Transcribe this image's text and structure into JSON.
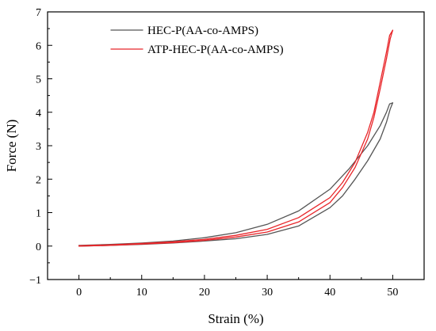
{
  "chart_data": {
    "type": "line",
    "title": "",
    "xlabel": "Strain (%)",
    "ylabel": "Force (N)",
    "xlim": [
      -5,
      55
    ],
    "ylim": [
      -1,
      7
    ],
    "xticks": [
      0,
      10,
      20,
      30,
      40,
      50
    ],
    "yticks": [
      -1,
      0,
      1,
      2,
      3,
      4,
      5,
      6,
      7
    ],
    "grid": false,
    "legend_position": "top-center",
    "series": [
      {
        "name": "HEC-P(AA-co-AMPS)",
        "color": "#555555",
        "loading": [
          [
            0,
            0.02
          ],
          [
            5,
            0.05
          ],
          [
            10,
            0.09
          ],
          [
            15,
            0.15
          ],
          [
            20,
            0.25
          ],
          [
            25,
            0.4
          ],
          [
            30,
            0.65
          ],
          [
            35,
            1.05
          ],
          [
            40,
            1.7
          ],
          [
            43,
            2.3
          ],
          [
            46,
            3.0
          ],
          [
            48,
            3.6
          ],
          [
            49,
            4.0
          ],
          [
            49.5,
            4.25
          ],
          [
            50,
            4.28
          ]
        ],
        "unloading": [
          [
            50,
            4.28
          ],
          [
            49.6,
            4.1
          ],
          [
            49,
            3.7
          ],
          [
            48,
            3.2
          ],
          [
            46,
            2.55
          ],
          [
            44,
            2.0
          ],
          [
            42,
            1.5
          ],
          [
            40,
            1.15
          ],
          [
            35,
            0.6
          ],
          [
            30,
            0.35
          ],
          [
            25,
            0.22
          ],
          [
            20,
            0.15
          ],
          [
            15,
            0.09
          ],
          [
            10,
            0.05
          ],
          [
            5,
            0.02
          ],
          [
            0,
            0.0
          ]
        ]
      },
      {
        "name": "ATP-HEC-P(AA-co-AMPS)",
        "color": "#e8262a",
        "loading": [
          [
            0,
            0.01
          ],
          [
            5,
            0.04
          ],
          [
            10,
            0.08
          ],
          [
            15,
            0.13
          ],
          [
            20,
            0.2
          ],
          [
            25,
            0.32
          ],
          [
            30,
            0.5
          ],
          [
            35,
            0.85
          ],
          [
            40,
            1.45
          ],
          [
            42,
            1.9
          ],
          [
            44,
            2.5
          ],
          [
            46,
            3.4
          ],
          [
            47,
            4.0
          ],
          [
            48,
            4.9
          ],
          [
            49,
            5.8
          ],
          [
            49.5,
            6.3
          ],
          [
            50,
            6.45
          ]
        ],
        "unloading": [
          [
            50,
            6.45
          ],
          [
            49.6,
            6.2
          ],
          [
            49,
            5.6
          ],
          [
            48,
            4.7
          ],
          [
            47,
            3.85
          ],
          [
            46,
            3.2
          ],
          [
            44,
            2.35
          ],
          [
            42,
            1.75
          ],
          [
            40,
            1.3
          ],
          [
            35,
            0.72
          ],
          [
            30,
            0.42
          ],
          [
            25,
            0.27
          ],
          [
            20,
            0.17
          ],
          [
            15,
            0.1
          ],
          [
            10,
            0.06
          ],
          [
            5,
            0.02
          ],
          [
            0,
            0.0
          ]
        ]
      }
    ]
  }
}
